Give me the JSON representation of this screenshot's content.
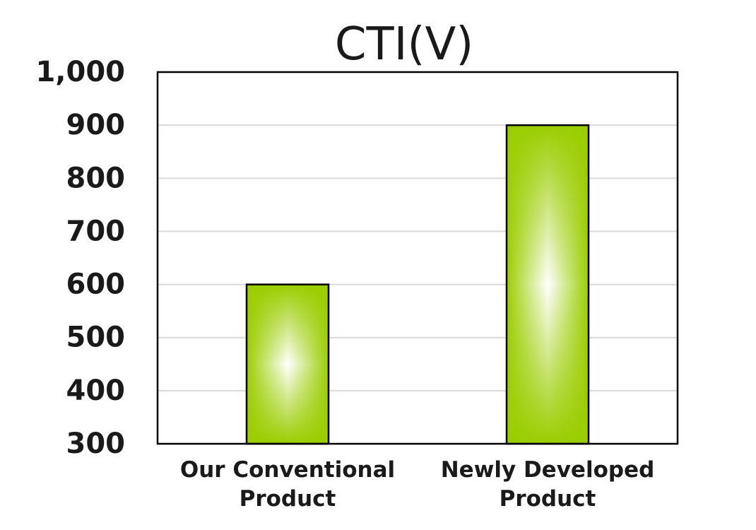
{
  "chart_data": {
    "type": "bar",
    "title": "CTI(V)",
    "xlabel": "",
    "ylabel": "",
    "categories": [
      [
        "Our Conventional",
        "Product"
      ],
      [
        "Newly Developed",
        "Product"
      ]
    ],
    "values": [
      600,
      900
    ],
    "ylim": [
      300,
      1000
    ],
    "yticks": [
      300,
      400,
      500,
      600,
      700,
      800,
      900,
      1000
    ],
    "ytick_labels": [
      "300",
      "400",
      "500",
      "600",
      "700",
      "800",
      "900",
      "1,000"
    ],
    "grid": true,
    "legend": "none",
    "colors": {
      "bar_edge": "#9acd00",
      "bar_center": "#ffffff",
      "grid": "#d9d9d9",
      "frame": "#000000"
    }
  }
}
